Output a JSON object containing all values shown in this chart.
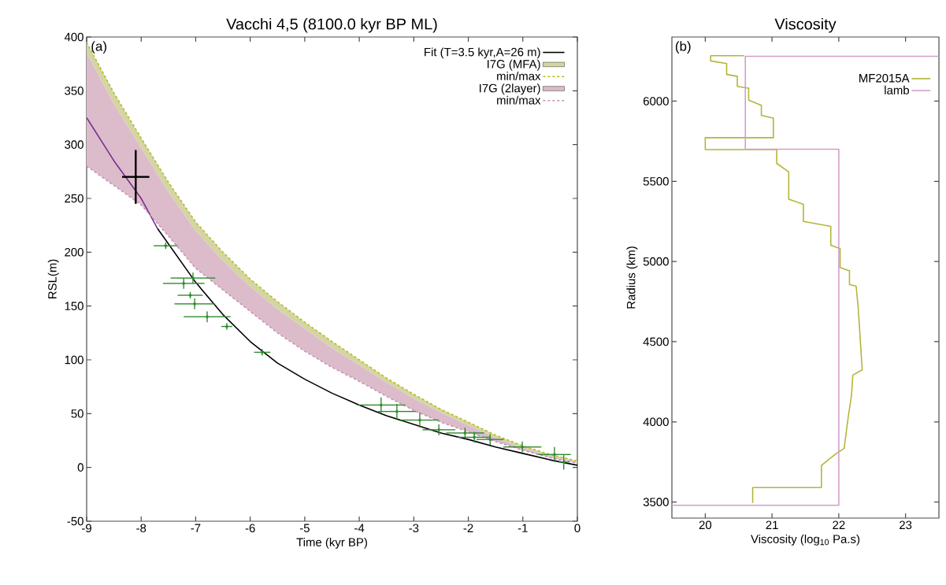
{
  "chart_data": [
    {
      "type": "line",
      "title": "Vacchi 4,5 (8100.0 kyr BP ML)",
      "xlabel": "Time (kyr BP)",
      "ylabel": "RSL(m)",
      "annotations": [
        "(a)"
      ],
      "xlim": [
        -9,
        0
      ],
      "ylim": [
        -50,
        400
      ],
      "xticks": [
        -9,
        -8,
        -7,
        -6,
        -5,
        -4,
        -3,
        -2,
        -1,
        0
      ],
      "yticks": [
        -50,
        0,
        50,
        100,
        150,
        200,
        250,
        300,
        350,
        400
      ],
      "legend": "top right",
      "series": [
        {
          "name": "Fit (T=3.5 kyr,A=26 m)",
          "type": "line",
          "color": "#000000",
          "x": [
            -7.7,
            -7,
            -6.5,
            -6,
            -5.5,
            -5,
            -4.5,
            -4,
            -3.5,
            -3,
            -2.5,
            -2,
            -1.5,
            -1,
            -0.5,
            0
          ],
          "values": [
            222,
            172,
            142,
            117,
            97,
            82,
            69,
            58,
            48,
            40,
            32,
            26,
            19,
            13,
            7,
            2
          ]
        },
        {
          "type": "line",
          "color": "#7b2d8e",
          "x": [
            -9,
            -8.5,
            -8,
            -7.7
          ],
          "values": [
            325,
            285,
            250,
            222
          ]
        },
        {
          "name": "I7G (MFA)",
          "type": "line",
          "color": "#d3d6a3",
          "x": [
            -9,
            -8.5,
            -8,
            -7.5,
            -7,
            -6.5,
            -6,
            -5.5,
            -5,
            -4.5,
            -4,
            -3.5,
            -3,
            -2.5,
            -2,
            -1.5,
            -1,
            -0.5,
            0
          ],
          "values": [
            null,
            null,
            null,
            null,
            null,
            null,
            null,
            null,
            null,
            null,
            null,
            null,
            null,
            null,
            null,
            null,
            null,
            null,
            null
          ],
          "lower": [
            385,
            338,
            297,
            256,
            220,
            192,
            168,
            147,
            129,
            111,
            95,
            79,
            64,
            51,
            39,
            28,
            18,
            11,
            5
          ],
          "upper": [
            395,
            348,
            306,
            265,
            228,
            200,
            175,
            154,
            135,
            117,
            100,
            83,
            68,
            54,
            42,
            30,
            20,
            12,
            6
          ]
        },
        {
          "name": "min/max",
          "type": "line",
          "line_style": "dashed",
          "color": "#b9b91e",
          "x": [
            -9,
            -8.5,
            -8,
            -7.5,
            -7,
            -6.5,
            -6,
            -5.5,
            -5,
            -4.5,
            -4,
            -3.5,
            -3,
            -2.5,
            -2,
            -1.5,
            -1,
            -0.5,
            0
          ],
          "values": [
            395,
            348,
            306,
            265,
            228,
            200,
            175,
            154,
            135,
            117,
            100,
            83,
            68,
            54,
            42,
            30,
            20,
            12,
            6
          ]
        },
        {
          "name": "I7G (2layer)",
          "type": "line",
          "color": "#dcbccb",
          "x": [
            -9,
            -8.5,
            -8,
            -7.5,
            -7,
            -6.5,
            -6,
            -5.5,
            -5,
            -4.5,
            -4,
            -3.5,
            -3,
            -2.5,
            -2,
            -1.5,
            -1,
            -0.5,
            0
          ],
          "values": [
            null,
            null,
            null,
            null,
            null,
            null,
            null,
            null,
            null,
            null,
            null,
            null,
            null,
            null,
            null,
            null,
            null,
            null,
            null
          ],
          "lower": [
            280,
            262,
            244,
            215,
            185,
            165,
            145,
            125,
            108,
            93,
            80,
            66,
            53,
            42,
            33,
            24,
            16,
            9,
            4
          ],
          "upper": [
            385,
            338,
            297,
            256,
            220,
            192,
            168,
            147,
            129,
            111,
            95,
            79,
            64,
            51,
            39,
            28,
            18,
            11,
            5
          ]
        },
        {
          "name": "min/max",
          "type": "line",
          "line_style": "dashed",
          "color": "#c98fb8",
          "x": [
            -9,
            -8.5,
            -8,
            -7.5,
            -7,
            -6.5,
            -6,
            -5.5,
            -5,
            -4.5,
            -4,
            -3.5,
            -3,
            -2.5,
            -2,
            -1.5,
            -1,
            -0.5,
            0
          ],
          "values": [
            280,
            262,
            244,
            215,
            185,
            165,
            145,
            125,
            108,
            93,
            80,
            66,
            53,
            42,
            33,
            24,
            16,
            9,
            4
          ]
        },
        {
          "type": "scatter",
          "marker": "circle",
          "color": "#2e8b2e",
          "x": [
            -7.55,
            -7.05,
            -7.22,
            -7.1,
            -7.02,
            -6.79,
            -6.43,
            -5.78,
            -3.6,
            -3.31,
            -2.89,
            -2.54,
            -2.06,
            -1.89,
            -1.6,
            -1.01,
            -0.42,
            -0.25
          ],
          "values": [
            206,
            176,
            171,
            160,
            152,
            140,
            131,
            107,
            58,
            52,
            44,
            35,
            32,
            28,
            26,
            19,
            12,
            5
          ],
          "errors": [
            3,
            5,
            5,
            3,
            5,
            5,
            3,
            3,
            7,
            7,
            7,
            5,
            5,
            5,
            5,
            5,
            7,
            7
          ],
          "xerrors": [
            0.22,
            0.41,
            0.38,
            0.23,
            0.37,
            0.43,
            0.1,
            0.15,
            0.44,
            0.35,
            0.35,
            0.3,
            0.35,
            0.3,
            0.25,
            0.35,
            0.3,
            0.1
          ]
        },
        {
          "type": "scatter",
          "marker": "none",
          "color": "#000000",
          "x": [
            -8.1
          ],
          "values": [
            270
          ],
          "errors": [
            25
          ],
          "xerrors": [
            0.25
          ]
        }
      ]
    },
    {
      "type": "line",
      "title": "Viscosity",
      "xlabel": "Viscosity (log$_{10}$ Pa.s)",
      "ylabel": "Radius (km)",
      "annotations": [
        "(b)"
      ],
      "xlim": [
        19.5,
        23.5
      ],
      "ylim": [
        3400,
        6400
      ],
      "xticks": [
        20,
        21,
        22,
        23
      ],
      "yticks": [
        3500,
        4000,
        4500,
        5000,
        5500,
        6000
      ],
      "legend": "top right",
      "series": [
        {
          "name": "MF2015A",
          "type": "line",
          "color": "#b5b43a",
          "x": [
            20.58,
            20.08,
            20.08,
            20.32,
            20.32,
            20.48,
            20.48,
            20.65,
            20.65,
            20.84,
            20.84,
            21.02,
            21.02,
            20.0,
            20.0,
            21.07,
            21.07,
            21.25,
            21.25,
            21.47,
            21.47,
            21.88,
            21.88,
            22.02,
            22.02,
            22.16,
            22.16,
            22.26,
            22.29,
            22.31,
            22.35,
            22.21,
            22.19,
            22.14,
            22.08,
            21.96,
            21.74,
            21.74,
            20.71,
            20.71
          ],
          "values": [
            6283,
            6283,
            6251,
            6234,
            6166,
            6155,
            6092,
            6081,
            6006,
            5974,
            5911,
            5894,
            5772,
            5772,
            5698,
            5698,
            5612,
            5559,
            5389,
            5357,
            5250,
            5219,
            5101,
            5080,
            4963,
            4942,
            4857,
            4846,
            4718,
            4590,
            4324,
            4292,
            4164,
            4026,
            3834,
            3802,
            3728,
            3590,
            3590,
            3494
          ]
        },
        {
          "name": "lamb",
          "type": "line",
          "color": "#d29fcb",
          "x": [
            19.5,
            22,
            22,
            20.6,
            20.6,
            23.5
          ],
          "values": [
            3480,
            3480,
            5700,
            5700,
            6280,
            6280
          ]
        }
      ]
    }
  ]
}
